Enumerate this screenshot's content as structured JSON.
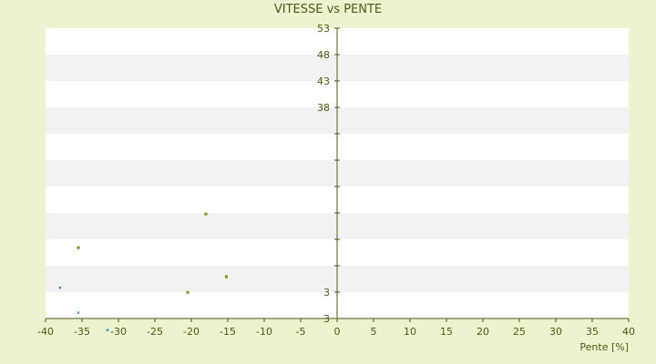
{
  "chart_data": {
    "type": "scatter",
    "title": "VITESSE vs PENTE",
    "xlabel": "Pente [%]",
    "ylabel": "",
    "xlim": [
      -40,
      40
    ],
    "ylim": [
      3,
      53
    ],
    "x_ticks": [
      "-40",
      "-35",
      "-30",
      "-25",
      "-20",
      "-15",
      "-10",
      "-5",
      "0",
      "5",
      "10",
      "15",
      "20",
      "25",
      "30",
      "35",
      "40"
    ],
    "y_tick_labels": [
      "53",
      "48",
      "43",
      "38",
      "3",
      "3"
    ],
    "grid": "horizontal bands",
    "legend": "none",
    "colors": {
      "background": "#edf2cf",
      "plot_band_light": "#ffffff",
      "plot_band_dark": "#f2f2f2",
      "series_1": "#3a8fd8",
      "series_2": "#a7a814",
      "series_2_edge": "#3d4700",
      "axis": "#4a5a14",
      "text": "#4a5a14"
    },
    "series": [
      {
        "values": [
          [
            -38,
            8.3
          ],
          [
            -35.5,
            4.0
          ],
          [
            -31.5,
            1.0
          ]
        ]
      },
      {
        "values": [
          [
            -35.5,
            15.2
          ],
          [
            -20.5,
            7.5
          ],
          [
            -18,
            21.0
          ],
          [
            -15.2,
            10.2
          ]
        ]
      }
    ]
  }
}
